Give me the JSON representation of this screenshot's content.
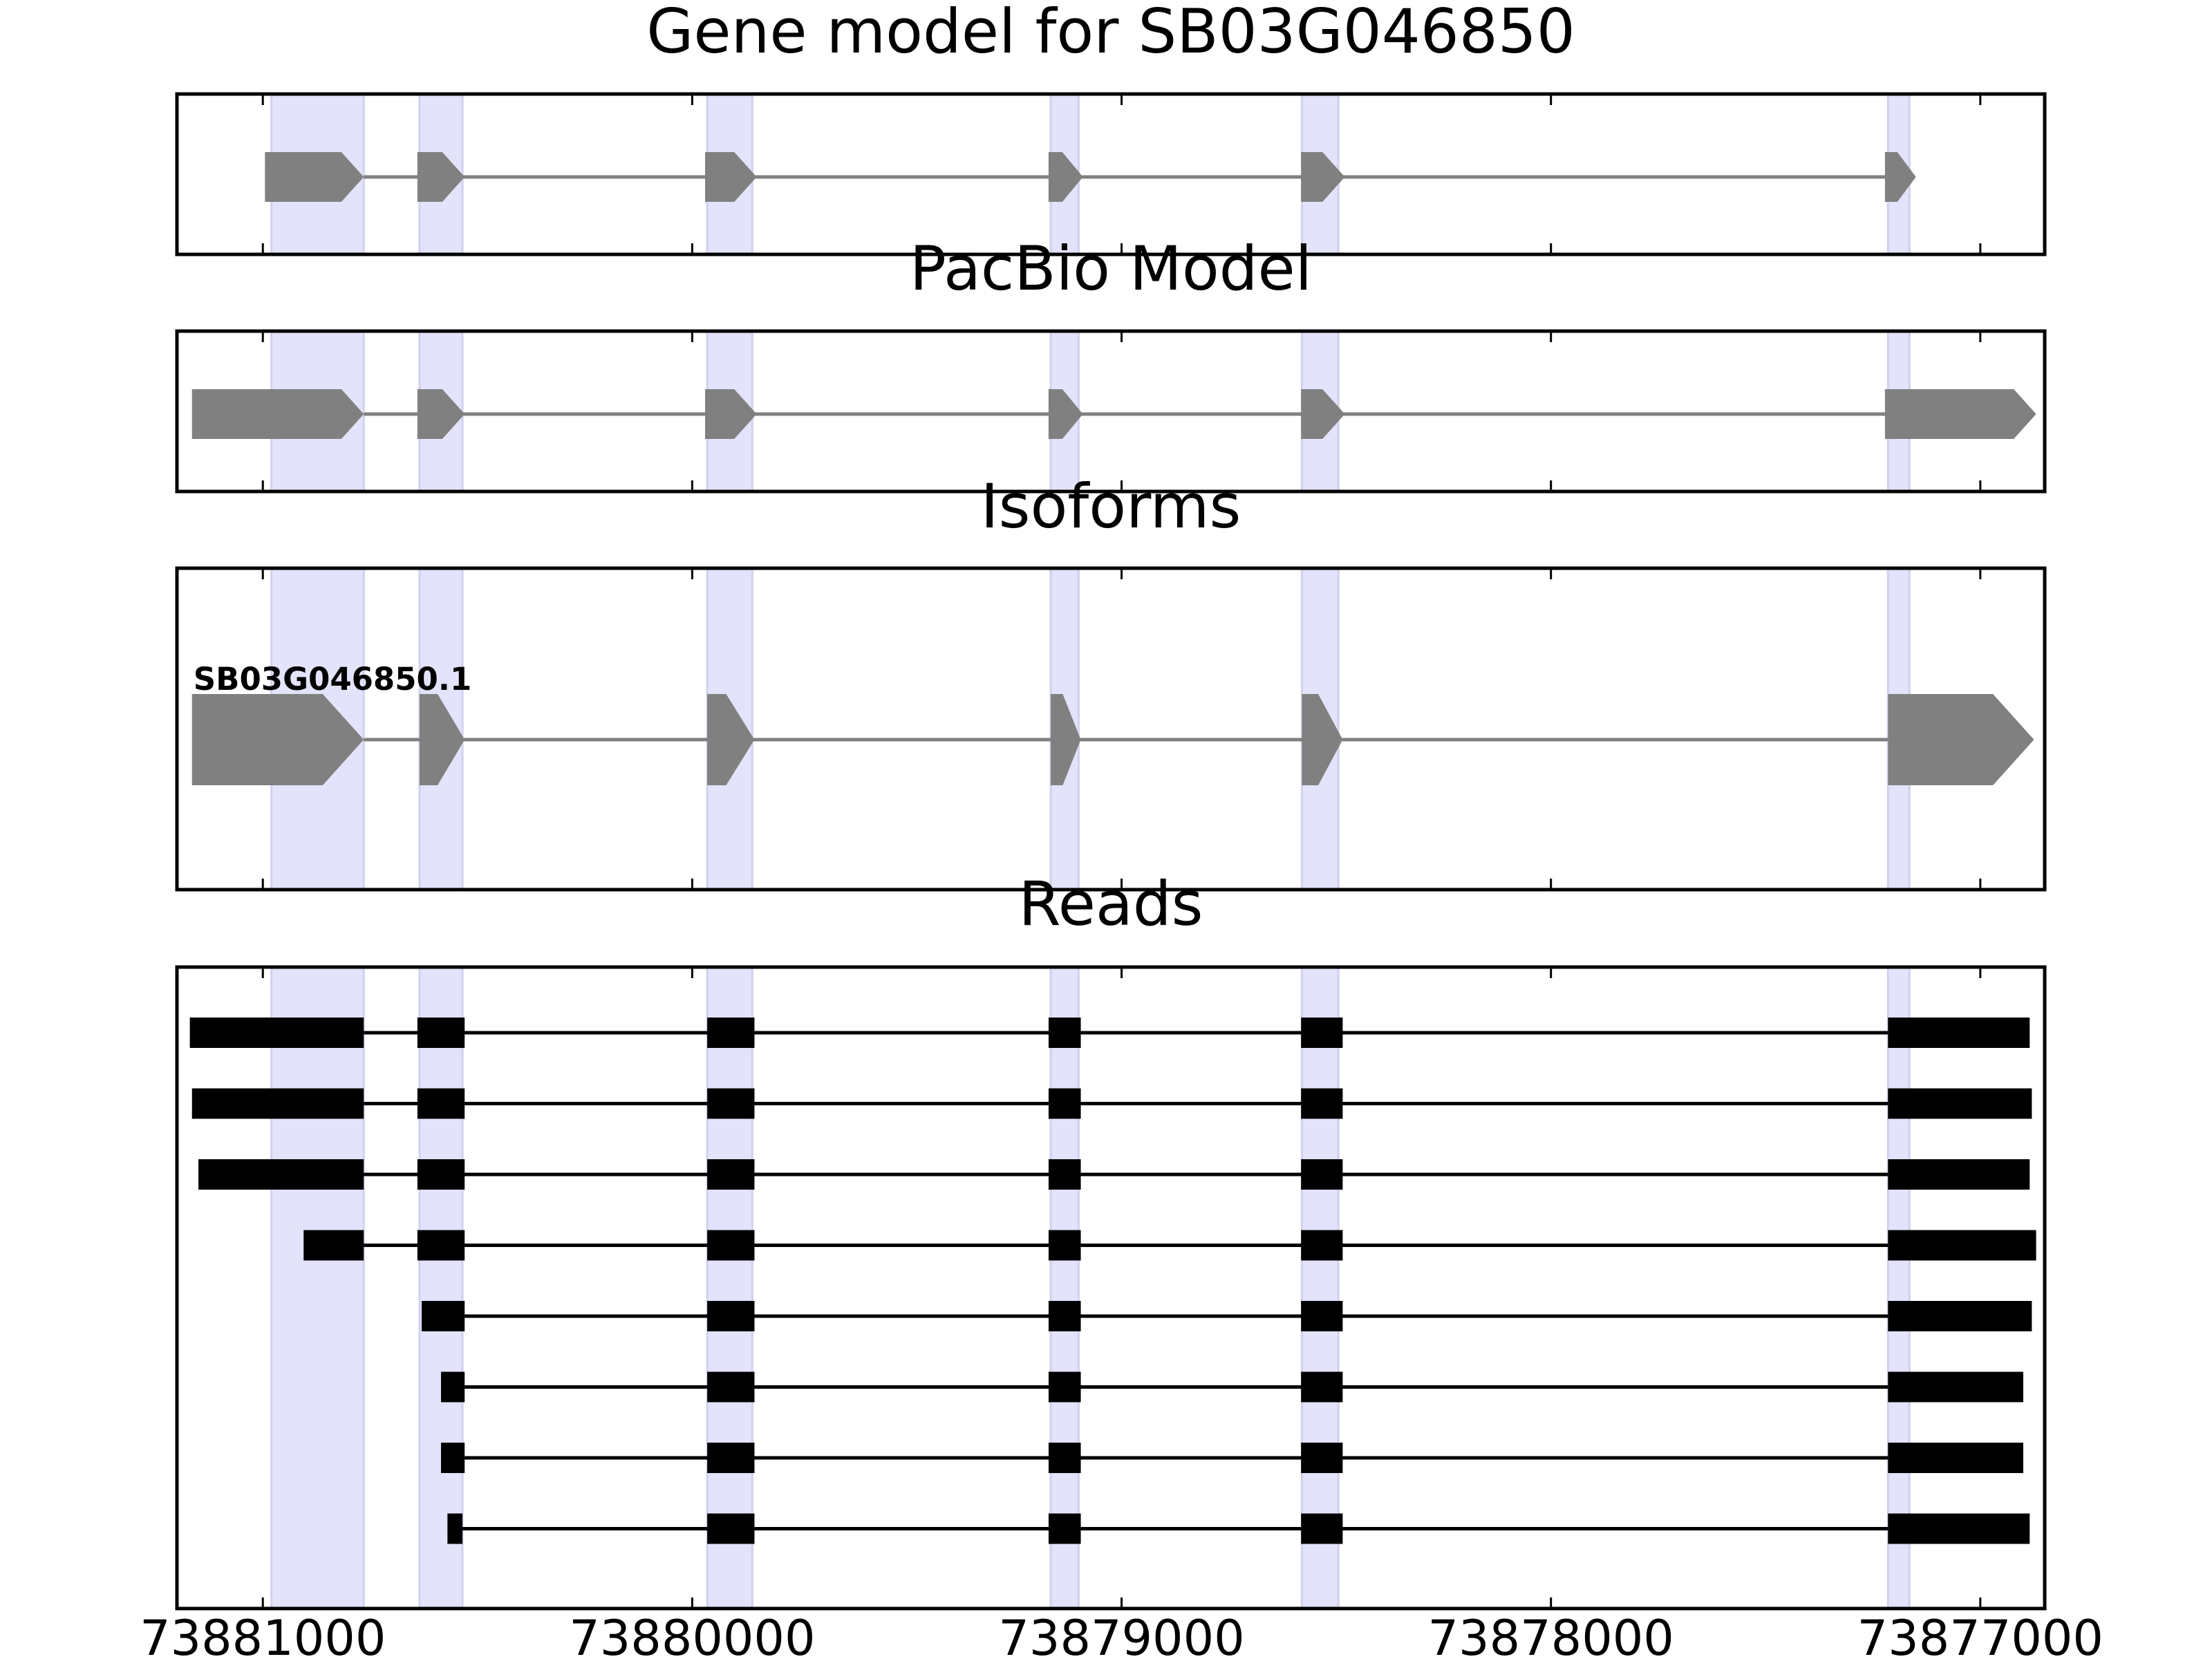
{
  "chart_data": {
    "type": "gene-structure",
    "x_axis": {
      "reversed": true,
      "domain": [
        73881200,
        73876850
      ],
      "ticks": [
        73881000,
        73880000,
        73879000,
        73878000,
        73877000
      ],
      "tick_labels": [
        "73881000",
        "73880000",
        "73879000",
        "73878000",
        "73877000"
      ]
    },
    "highlight_color": "#e3e3fb",
    "highlight_regions": [
      [
        73880980,
        73880765
      ],
      [
        73880635,
        73880535
      ],
      [
        73879965,
        73879860
      ],
      [
        73879165,
        73879100
      ],
      [
        73878580,
        73878495
      ],
      [
        73877215,
        73877165
      ]
    ],
    "panels": [
      {
        "title": "Gene model for SB03G046850",
        "feature_color": "#808080",
        "strand": "-",
        "exons": [
          [
            73880995,
            73880765
          ],
          [
            73880640,
            73880530
          ],
          [
            73879970,
            73879850
          ],
          [
            73879170,
            73879090
          ],
          [
            73878582,
            73878480
          ],
          [
            73877222,
            73877150
          ]
        ]
      },
      {
        "title": "PacBio Model",
        "feature_color": "#808080",
        "strand": "-",
        "exons": [
          [
            73881165,
            73880765
          ],
          [
            73880640,
            73880530
          ],
          [
            73879970,
            73879850
          ],
          [
            73879170,
            73879090
          ],
          [
            73878582,
            73878480
          ],
          [
            73877222,
            73876870
          ]
        ]
      },
      {
        "title": "Isoforms",
        "feature_color": "#808080",
        "strand": "-",
        "isoforms": [
          {
            "label": "SB03G046850.1",
            "exons": [
              [
                73881165,
                73880765
              ],
              [
                73880635,
                73880530
              ],
              [
                73879965,
                73879855
              ],
              [
                73879165,
                73879095
              ],
              [
                73878580,
                73878485
              ],
              [
                73877215,
                73876875
              ]
            ]
          }
        ]
      },
      {
        "title": "Reads",
        "feature_color": "#000000",
        "reads": [
          [
            [
              73881170,
              73880765
            ],
            [
              73880640,
              73880530
            ],
            [
              73879965,
              73879855
            ],
            [
              73879170,
              73879095
            ],
            [
              73878582,
              73878485
            ],
            [
              73877215,
              73876885
            ]
          ],
          [
            [
              73881165,
              73880765
            ],
            [
              73880640,
              73880530
            ],
            [
              73879965,
              73879855
            ],
            [
              73879170,
              73879095
            ],
            [
              73878582,
              73878485
            ],
            [
              73877215,
              73876880
            ]
          ],
          [
            [
              73881150,
              73880765
            ],
            [
              73880640,
              73880530
            ],
            [
              73879965,
              73879855
            ],
            [
              73879170,
              73879095
            ],
            [
              73878582,
              73878485
            ],
            [
              73877215,
              73876885
            ]
          ],
          [
            [
              73880905,
              73880765
            ],
            [
              73880640,
              73880530
            ],
            [
              73879965,
              73879855
            ],
            [
              73879170,
              73879095
            ],
            [
              73878582,
              73878485
            ],
            [
              73877215,
              73876870
            ]
          ],
          [
            [
              73880630,
              73880530
            ],
            [
              73879965,
              73879855
            ],
            [
              73879170,
              73879095
            ],
            [
              73878582,
              73878485
            ],
            [
              73877215,
              73876880
            ]
          ],
          [
            [
              73880585,
              73880530
            ],
            [
              73879965,
              73879855
            ],
            [
              73879170,
              73879095
            ],
            [
              73878582,
              73878485
            ],
            [
              73877215,
              73876900
            ]
          ],
          [
            [
              73880585,
              73880530
            ],
            [
              73879965,
              73879855
            ],
            [
              73879170,
              73879095
            ],
            [
              73878582,
              73878485
            ],
            [
              73877215,
              73876900
            ]
          ],
          [
            [
              73880570,
              73880535
            ],
            [
              73879965,
              73879855
            ],
            [
              73879170,
              73879095
            ],
            [
              73878582,
              73878485
            ],
            [
              73877215,
              73876885
            ]
          ]
        ]
      }
    ]
  }
}
